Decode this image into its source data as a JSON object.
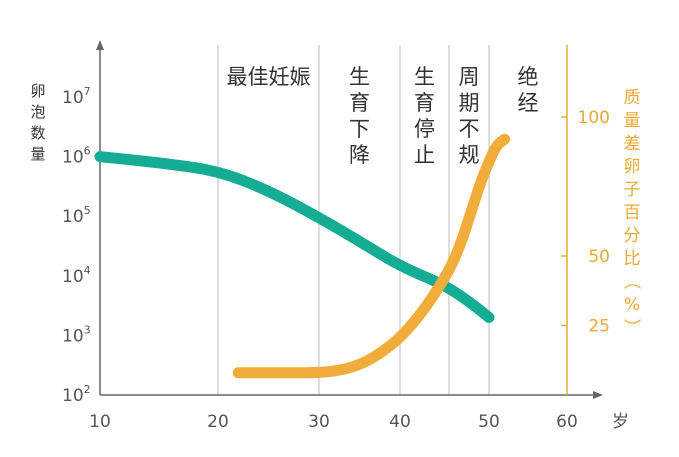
{
  "chart_data": {
    "type": "line",
    "xlabel": "岁",
    "ylabel": "卵泡数量",
    "y2label": "质量差卵子百分比（%）",
    "x_ticks": [
      10,
      20,
      30,
      40,
      50,
      60
    ],
    "y_ticks": [
      {
        "base": "10",
        "exp": "2"
      },
      {
        "base": "10",
        "exp": "3"
      },
      {
        "base": "10",
        "exp": "4"
      },
      {
        "base": "10",
        "exp": "5"
      },
      {
        "base": "10",
        "exp": "6"
      },
      {
        "base": "10",
        "exp": "7"
      }
    ],
    "y2_ticks": [
      25,
      50,
      100
    ],
    "xlim": [
      10,
      62
    ],
    "y_scale": "log",
    "ylim": [
      100,
      10000000
    ],
    "y2lim": [
      0,
      120
    ],
    "band_dividers": [
      20,
      30,
      40,
      45.5,
      50
    ],
    "band_labels": [
      {
        "text": "最佳妊娠",
        "x_center": 25
      },
      {
        "text": "生育下降",
        "x_center": 35
      },
      {
        "text": "生育停止",
        "x_center": 42.75
      },
      {
        "text": "周期不规",
        "x_center": 47.75
      },
      {
        "text": "绝经",
        "x_center": 55
      }
    ],
    "series": [
      {
        "axis": "left",
        "color": "#14ad94",
        "points": [
          [
            10,
            1000000
          ],
          [
            15,
            790000
          ],
          [
            20,
            580000
          ],
          [
            25,
            270000
          ],
          [
            30,
            95000
          ],
          [
            35,
            38000
          ],
          [
            40,
            14500
          ],
          [
            45,
            7000
          ],
          [
            48,
            3500
          ],
          [
            50,
            2000
          ]
        ]
      },
      {
        "axis": "right",
        "color": "#f0ad3c",
        "points": [
          [
            22,
            8
          ],
          [
            26,
            8
          ],
          [
            30,
            8
          ],
          [
            33,
            9
          ],
          [
            36,
            12
          ],
          [
            39,
            18
          ],
          [
            41,
            24
          ],
          [
            43,
            32
          ],
          [
            45,
            42
          ],
          [
            46,
            48
          ],
          [
            47,
            56
          ],
          [
            48,
            66
          ],
          [
            49,
            76
          ],
          [
            50,
            84
          ],
          [
            51,
            90
          ],
          [
            52,
            92
          ]
        ]
      }
    ],
    "axis_color": "#e9a935"
  }
}
